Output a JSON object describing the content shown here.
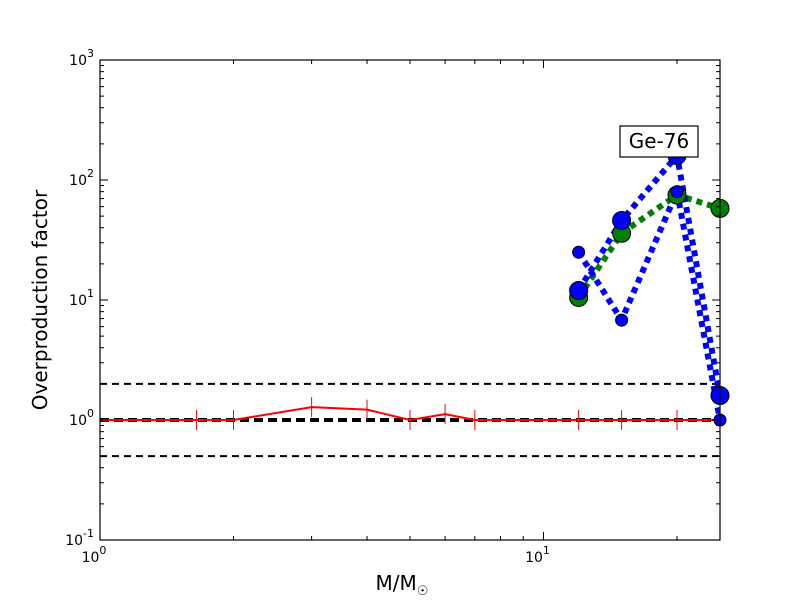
{
  "chart_data": {
    "type": "line",
    "xscale": "log",
    "yscale": "log",
    "xlim": [
      1,
      25
    ],
    "ylim": [
      0.1,
      1000
    ],
    "xlabel": "M/M",
    "xlabel_sub": "☉",
    "ylabel": "Overproduction factor",
    "grid": false,
    "annotation": "Ge-76",
    "x_ticks": [
      {
        "base": "10",
        "exp": "0",
        "value": 1
      },
      {
        "base": "10",
        "exp": "1",
        "value": 10
      }
    ],
    "y_ticks": [
      {
        "base": "10",
        "exp": "-1",
        "value": 0.1
      },
      {
        "base": "10",
        "exp": "0",
        "value": 1
      },
      {
        "base": "10",
        "exp": "1",
        "value": 10
      },
      {
        "base": "10",
        "exp": "2",
        "value": 100
      },
      {
        "base": "10",
        "exp": "3",
        "value": 1000
      }
    ],
    "reference_lines": [
      {
        "y": 2,
        "style": "dashed",
        "color": "#000000"
      },
      {
        "y": 1,
        "style": "dashed-thick",
        "color": "#000000"
      },
      {
        "y": 0.5,
        "style": "dashed",
        "color": "#000000"
      }
    ],
    "series": [
      {
        "color": "#ff0000",
        "style": "solid",
        "marker": "vline",
        "x": [
          1,
          1.65,
          2,
          3,
          4,
          5,
          6,
          7,
          12,
          15,
          20,
          25
        ],
        "y": [
          1.0,
          1.0,
          1.0,
          1.28,
          1.22,
          1.0,
          1.12,
          1.0,
          1.0,
          1.0,
          1.0,
          1.0
        ]
      },
      {
        "color": "#008000",
        "style": "dotted",
        "marker": "circle",
        "x": [
          12,
          15,
          20,
          25
        ],
        "y": [
          10.5,
          36,
          75,
          58
        ]
      },
      {
        "color": "#0000ff",
        "style": "dotted",
        "marker": "circle",
        "x": [
          12,
          15,
          20,
          25
        ],
        "y": [
          12,
          46,
          160,
          1.6
        ]
      },
      {
        "color": "#0000ff",
        "style": "dotted",
        "marker": "circle",
        "x": [
          12,
          15,
          20,
          25
        ],
        "y": [
          25,
          6.8,
          80,
          1.0
        ]
      }
    ]
  }
}
